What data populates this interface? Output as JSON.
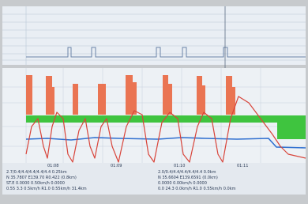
{
  "time_labels": [
    "01:08",
    "01:09",
    "01:10",
    "01:11"
  ],
  "left_info": [
    "2.7/0.4/4.4/4.4/4.4/4.4  0.25km",
    "N 35.7807 E139.70 R0.422 (0.8km)",
    "ST.E 0.0000 0.50km/h 0.0000",
    "0.55 3.3  0.5km/h  R1.0  0.55km/h  31.4km"
  ],
  "right_info": [
    "2.0/0.4/4.4/4.4/4.4/4.4  0.0km",
    "N 35.6604 E139.6591 (0.0km)",
    "0.0000 0.00km/h 0.0000",
    "0.0 24.3  0.0km/h  R1.0  0.55km/h  0.0km"
  ]
}
